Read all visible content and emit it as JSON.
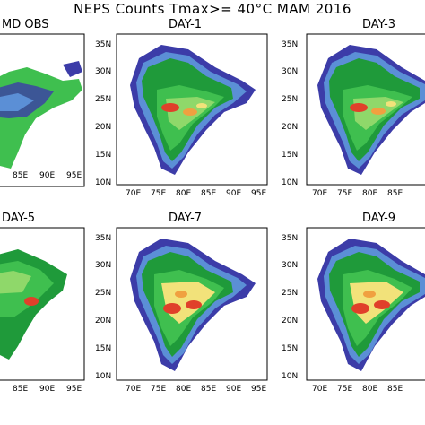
{
  "title": "NEPS Counts Tmax>= 40°C MAM 2016",
  "panels": [
    {
      "label": "IMD OBS",
      "shown": "MD OBS"
    },
    {
      "label": "DAY-1"
    },
    {
      "label": "DAY-3"
    },
    {
      "label": "DAY-5",
      "shown": "DAY-5"
    },
    {
      "label": "DAY-7"
    },
    {
      "label": "DAY-9"
    }
  ],
  "axes": {
    "lat_ticks": [
      "10N",
      "15N",
      "20N",
      "25N",
      "30N",
      "35N"
    ],
    "lon_ticks": [
      "70E",
      "75E",
      "80E",
      "85E",
      "90E",
      "95E"
    ]
  },
  "palette": {
    "purple": "#3c3ca8",
    "blue": "#5b8fd6",
    "cyan": "#7fd3e6",
    "green_dark": "#1f9a3a",
    "green": "#3fbf4f",
    "green_light": "#8fd86a",
    "yellow": "#f2e27a",
    "orange": "#f0a040",
    "red": "#e0402a"
  }
}
